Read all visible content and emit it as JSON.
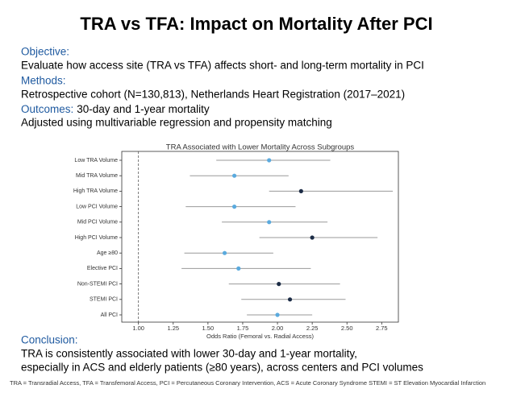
{
  "title": "TRA vs TFA: Impact on Mortality After PCI",
  "objective_label": "Objective:",
  "objective": "Evaluate how access site (TRA vs TFA) affects short- and long-term mortality in PCI",
  "methods_label": "Methods:",
  "methods": "Retrospective cohort (N=130,813), Netherlands Heart Registration (2017–2021)",
  "outcomes_label": "Outcomes:",
  "outcomes": "30-day and 1-year mortality",
  "adjusted": "Adjusted using multivariable regression and propensity matching",
  "conclusion_label": "Conclusion:",
  "conclusion": [
    "TRA is consistently associated with lower 30-day and 1-year mortality,",
    "especially in ACS and elderly patients (≥80 years), across centers and PCI volumes"
  ],
  "footnote": "TRA = Transradial Access, TFA = Transfemoral Access, PCI = Percutaneous Coronary Intervention, ACS = Acute Coronary Syndrome STEMI  = ST Elevation Myocardial Infarction",
  "chart_data": {
    "type": "forest",
    "title": "TRA Associated with Lower Mortality Across Subgroups",
    "xlabel": "Odds Ratio (Femoral vs. Radial Access)",
    "categories": [
      "Low TRA Volume",
      "Mid TRA Volume",
      "High TRA Volume",
      "Low PCI Volume",
      "Mid PCI Volume",
      "High PCI Volume",
      "Age ≥80",
      "Elective PCI",
      "Non-STEMI PCI",
      "STEMI PCI",
      "All PCI"
    ],
    "values": [
      1.94,
      1.69,
      2.17,
      1.69,
      1.94,
      2.25,
      1.62,
      1.72,
      2.01,
      2.09,
      2.0
    ],
    "lower": [
      1.56,
      1.37,
      1.94,
      1.34,
      1.6,
      1.87,
      1.33,
      1.31,
      1.65,
      1.74,
      1.78
    ],
    "upper": [
      2.38,
      2.08,
      2.83,
      2.13,
      2.36,
      2.72,
      1.97,
      2.24,
      2.45,
      2.49,
      2.25
    ],
    "colors": [
      "#5aaade",
      "#5aaade",
      "#1c2c46",
      "#5aaade",
      "#5aaade",
      "#1c2c46",
      "#5aaade",
      "#5aaade",
      "#1c2c46",
      "#1c2c46",
      "#5aaade"
    ],
    "ci_color": "#999999",
    "reference_line": 1,
    "xlim": [
      0.88,
      2.87
    ],
    "xticks": [
      {
        "value": 1,
        "label": "1.00"
      },
      {
        "value": 1.25,
        "label": "1.25"
      },
      {
        "value": 1.5,
        "label": "1.50"
      },
      {
        "value": 1.75,
        "label": "1.75"
      },
      {
        "value": 2,
        "label": "2.00"
      },
      {
        "value": 2.25,
        "label": "2.25"
      },
      {
        "value": 2.5,
        "label": "2.50"
      },
      {
        "value": 2.75,
        "label": "2.75"
      }
    ]
  }
}
